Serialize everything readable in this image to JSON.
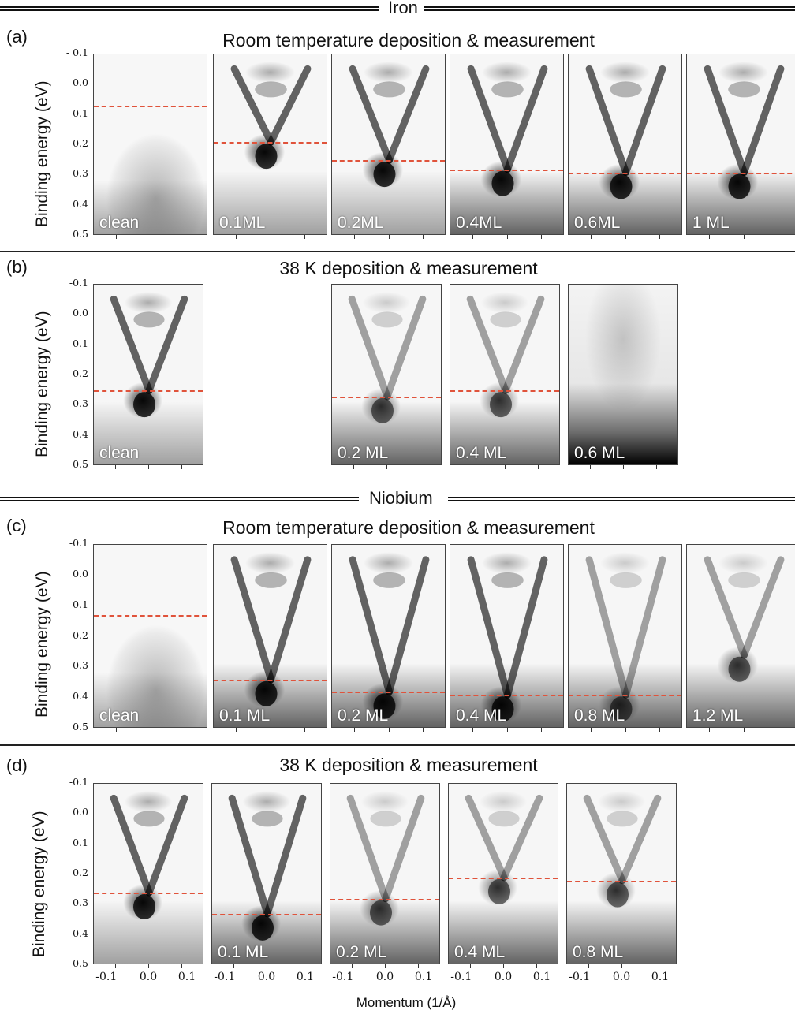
{
  "iron_header": "Iron",
  "niobium_header": "Niobium",
  "panels": {
    "a": {
      "label": "(a)",
      "title": "Room temperature deposition & measurement"
    },
    "b": {
      "label": "(b)",
      "title": "38 K deposition & measurement"
    },
    "c": {
      "label": "(c)",
      "title": "Room temperature deposition & measurement"
    },
    "d": {
      "label": "(d)",
      "title": "38 K deposition & measurement"
    }
  },
  "ylabel": "Binding energy (eV)",
  "xlabel": "Momentum (1/Å)",
  "yticks_a": [
    "- 0.1",
    "0.0",
    "0.1",
    "0.2",
    "0.3",
    "0.4",
    "0.5"
  ],
  "yticks": [
    "-0.1",
    "0.0",
    "0.1",
    "0.2",
    "0.3",
    "0.4",
    "0.5"
  ],
  "xticks": [
    "-0.1",
    "0.0",
    "0.1"
  ],
  "rows": {
    "a": [
      {
        "coverage": "clean",
        "dirac_point_eV": 0.07,
        "style": "clean_rt"
      },
      {
        "coverage": "0.1ML",
        "dirac_point_eV": 0.19,
        "style": "v"
      },
      {
        "coverage": "0.2ML",
        "dirac_point_eV": 0.25,
        "style": "v"
      },
      {
        "coverage": "0.4ML",
        "dirac_point_eV": 0.28,
        "style": "vb"
      },
      {
        "coverage": "0.6ML",
        "dirac_point_eV": 0.29,
        "style": "vb"
      },
      {
        "coverage": "1 ML",
        "dirac_point_eV": 0.29,
        "style": "vb"
      }
    ],
    "b": [
      {
        "coverage": "clean",
        "dirac_point_eV": 0.25,
        "style": "v"
      },
      {
        "coverage": "0.2 ML",
        "dirac_point_eV": 0.27,
        "style": "vbf"
      },
      {
        "coverage": "0.4 ML",
        "dirac_point_eV": 0.25,
        "style": "vbf"
      },
      {
        "coverage": "0.6 ML",
        "dirac_point_eV": null,
        "style": "fog"
      }
    ],
    "c": [
      {
        "coverage": "clean",
        "dirac_point_eV": 0.13,
        "style": "clean_rt"
      },
      {
        "coverage": "0.1 ML",
        "dirac_point_eV": 0.34,
        "style": "vb"
      },
      {
        "coverage": "0.2 ML",
        "dirac_point_eV": 0.38,
        "style": "vb"
      },
      {
        "coverage": "0.4 ML",
        "dirac_point_eV": 0.39,
        "style": "vb"
      },
      {
        "coverage": "0.8 ML",
        "dirac_point_eV": 0.39,
        "style": "vbf"
      },
      {
        "coverage": "1.2 ML",
        "dirac_point_eV": null,
        "style": "vbf"
      }
    ],
    "d": [
      {
        "coverage": "",
        "dirac_point_eV": 0.26,
        "style": "v"
      },
      {
        "coverage": "0.1 ML",
        "dirac_point_eV": 0.33,
        "style": "vb"
      },
      {
        "coverage": "0.2 ML",
        "dirac_point_eV": 0.28,
        "style": "vbf"
      },
      {
        "coverage": "0.4 ML",
        "dirac_point_eV": 0.21,
        "style": "vbf"
      },
      {
        "coverage": "0.8 ML",
        "dirac_point_eV": 0.22,
        "style": "vbf"
      }
    ]
  },
  "colors": {
    "dashed_line": "#e0533b",
    "ink": "#111111"
  }
}
